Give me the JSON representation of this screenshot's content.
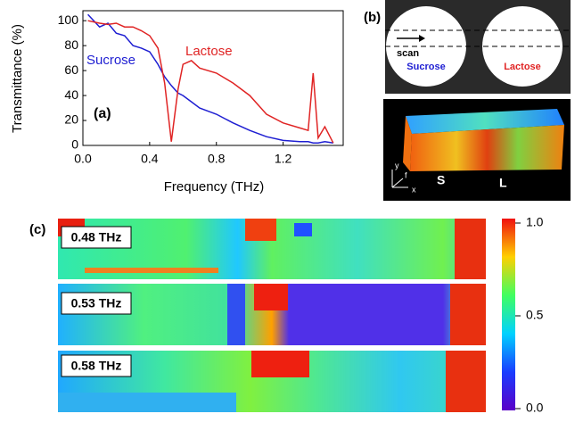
{
  "chart_data": {
    "type": "line",
    "x_label": "Frequency (THz)",
    "y_label": "Transmittance (%)",
    "panel_label": "(a)",
    "x": [
      0.03,
      0.1,
      0.15,
      0.2,
      0.25,
      0.3,
      0.35,
      0.4,
      0.45,
      0.49,
      0.53,
      0.57,
      0.6,
      0.65,
      0.7,
      0.8,
      0.9,
      1.0,
      1.1,
      1.2,
      1.3,
      1.35,
      1.38,
      1.41,
      1.45,
      1.5
    ],
    "series": [
      {
        "name": "Sucrose",
        "color": "#1e1ed2",
        "values": [
          105,
          95,
          98,
          90,
          88,
          80,
          78,
          75,
          65,
          55,
          48,
          42,
          40,
          35,
          30,
          25,
          18,
          12,
          7,
          4,
          3,
          3,
          2,
          2,
          3,
          2
        ]
      },
      {
        "name": "Lactose",
        "color": "#e02424",
        "values": [
          100,
          98,
          97,
          98,
          95,
          95,
          92,
          88,
          78,
          50,
          3,
          45,
          65,
          68,
          62,
          58,
          50,
          40,
          25,
          18,
          14,
          12,
          58,
          6,
          15,
          2
        ]
      }
    ],
    "xlim": [
      0,
      1.56
    ],
    "ylim": [
      0,
      108
    ],
    "xticks": [
      {
        "value": 0,
        "label": "0.0"
      },
      0.4,
      0.8,
      1.2
    ],
    "yticks": [
      0,
      20,
      40,
      60,
      80,
      100
    ]
  },
  "panel_b": {
    "label": "(b)",
    "scan": "scan",
    "left_sample": "Sucrose",
    "right_sample": "Lactose",
    "axis_y": "y",
    "axis_f": "f",
    "axis_x": "x",
    "left_mark": "S",
    "right_mark": "L"
  },
  "panel_c": {
    "label": "(c)",
    "maps": [
      "0.48 THz",
      "0.53 THz",
      "0.58 THz"
    ],
    "colorbar": {
      "lim": [
        0,
        1
      ],
      "ticks": [
        {
          "value": 0,
          "label": "0.0"
        },
        0.5,
        {
          "value": 1,
          "label": "1.0"
        }
      ]
    }
  }
}
